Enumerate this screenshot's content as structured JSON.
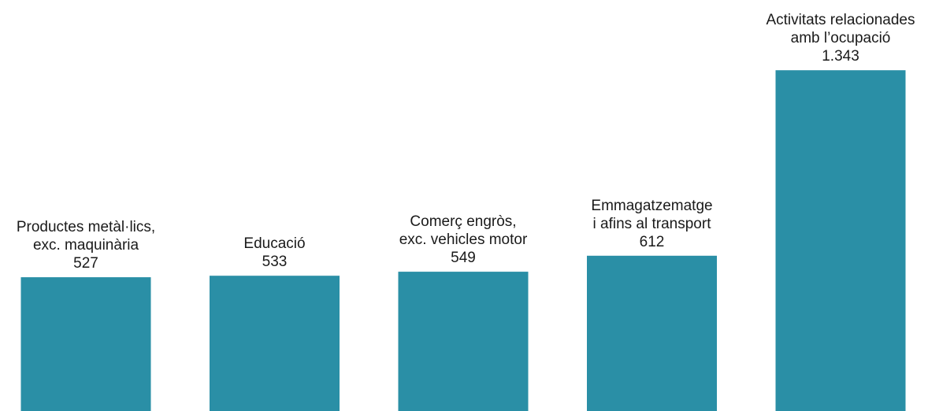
{
  "chart_data": {
    "type": "bar",
    "categories": [
      [
        "Productes metàl·lics,",
        "exc. maquinària"
      ],
      [
        "Educació"
      ],
      [
        "Comerç engròs,",
        "exc. vehicles motor"
      ],
      [
        "Emmagatzematge",
        "i afins al transport"
      ],
      [
        "Activitats relacionades",
        "amb l’ocupació"
      ]
    ],
    "values": [
      527,
      533,
      549,
      612,
      1343
    ],
    "value_labels": [
      "527",
      "533",
      "549",
      "612",
      "1.343"
    ],
    "bar_color": "#2a8fa6",
    "grid": false,
    "axes_visible": false,
    "legend": "none"
  }
}
